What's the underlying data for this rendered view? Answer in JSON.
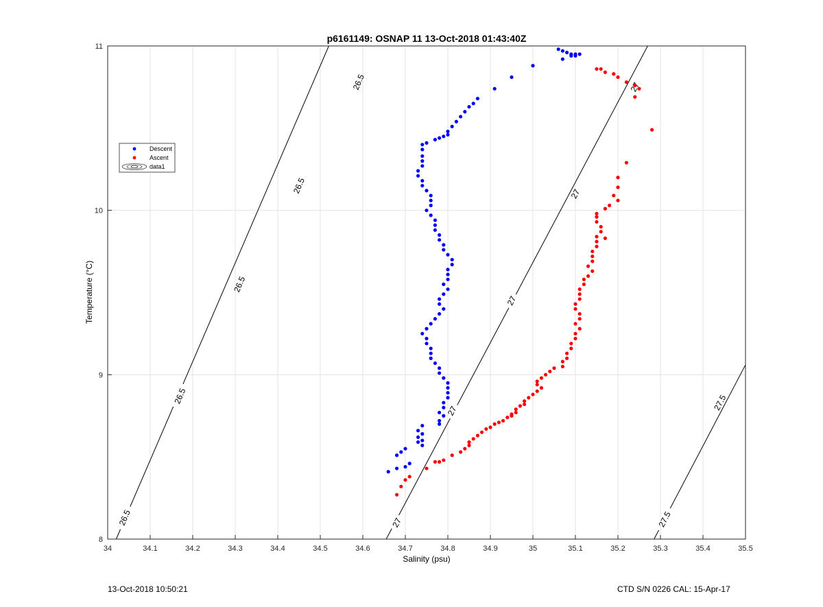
{
  "chart_data": {
    "type": "scatter",
    "title": "p6161149: OSNAP 11 13-Oct-2018 01:43:40Z",
    "xlabel": "Salinity (psu)",
    "ylabel": "Temperature (°C)",
    "xlim": [
      34,
      35.5
    ],
    "ylim": [
      8,
      11
    ],
    "xticks": [
      "34",
      "34.1",
      "34.2",
      "34.3",
      "34.4",
      "34.5",
      "34.6",
      "34.7",
      "34.8",
      "34.9",
      "35",
      "35.1",
      "35.2",
      "35.3",
      "35.4",
      "35.5"
    ],
    "yticks": [
      "8",
      "9",
      "10",
      "11"
    ],
    "grid": true,
    "legend": {
      "position": "upper-left",
      "entries": [
        "Descent",
        "Ascent",
        "data1"
      ]
    },
    "colors": {
      "descent": "#0000ff",
      "ascent": "#ff0000",
      "contour": "#000000"
    },
    "contours": [
      {
        "level": 26.5,
        "label": "26.5",
        "points": [
          [
            34.02,
            8.0
          ],
          [
            34.52,
            11.0
          ]
        ],
        "label_positions": [
          [
            34.04,
            8.13
          ],
          [
            34.17,
            8.87
          ],
          [
            34.31,
            9.55
          ],
          [
            34.45,
            10.15
          ],
          [
            34.59,
            10.78
          ]
        ]
      },
      {
        "level": 27,
        "label": "27",
        "points": [
          [
            34.655,
            8.0
          ],
          [
            35.27,
            11.0
          ]
        ],
        "label_positions": [
          [
            34.68,
            8.1
          ],
          [
            34.81,
            8.78
          ],
          [
            34.95,
            9.45
          ],
          [
            35.1,
            10.1
          ],
          [
            35.24,
            10.75
          ]
        ]
      },
      {
        "level": 27.5,
        "label": "27.5",
        "points": [
          [
            35.285,
            8.0
          ],
          [
            35.5,
            9.06
          ]
        ],
        "label_positions": [
          [
            35.31,
            8.12
          ],
          [
            35.44,
            8.83
          ]
        ]
      }
    ],
    "series": [
      {
        "name": "Descent",
        "points": [
          [
            35.06,
            10.98
          ],
          [
            35.07,
            10.97
          ],
          [
            35.08,
            10.96
          ],
          [
            35.09,
            10.95
          ],
          [
            35.1,
            10.95
          ],
          [
            35.11,
            10.95
          ],
          [
            35.1,
            10.94
          ],
          [
            35.09,
            10.94
          ],
          [
            35.07,
            10.92
          ],
          [
            35.0,
            10.88
          ],
          [
            34.95,
            10.81
          ],
          [
            34.91,
            10.74
          ],
          [
            34.87,
            10.68
          ],
          [
            34.86,
            10.65
          ],
          [
            34.85,
            10.63
          ],
          [
            34.84,
            10.6
          ],
          [
            34.83,
            10.57
          ],
          [
            34.82,
            10.54
          ],
          [
            34.81,
            10.51
          ],
          [
            34.8,
            10.48
          ],
          [
            34.8,
            10.46
          ],
          [
            34.79,
            10.45
          ],
          [
            34.78,
            10.44
          ],
          [
            34.77,
            10.43
          ],
          [
            34.75,
            10.41
          ],
          [
            34.74,
            10.4
          ],
          [
            34.74,
            10.37
          ],
          [
            34.74,
            10.33
          ],
          [
            34.74,
            10.3
          ],
          [
            34.74,
            10.27
          ],
          [
            34.73,
            10.24
          ],
          [
            34.73,
            10.21
          ],
          [
            34.74,
            10.18
          ],
          [
            34.74,
            10.15
          ],
          [
            34.75,
            10.12
          ],
          [
            34.76,
            10.09
          ],
          [
            34.76,
            10.06
          ],
          [
            34.76,
            10.03
          ],
          [
            34.75,
            10.0
          ],
          [
            34.76,
            9.97
          ],
          [
            34.77,
            9.94
          ],
          [
            34.77,
            9.91
          ],
          [
            34.77,
            9.88
          ],
          [
            34.78,
            9.85
          ],
          [
            34.78,
            9.82
          ],
          [
            34.79,
            9.79
          ],
          [
            34.79,
            9.76
          ],
          [
            34.8,
            9.73
          ],
          [
            34.81,
            9.7
          ],
          [
            34.81,
            9.67
          ],
          [
            34.8,
            9.64
          ],
          [
            34.8,
            9.61
          ],
          [
            34.8,
            9.58
          ],
          [
            34.79,
            9.55
          ],
          [
            34.8,
            9.52
          ],
          [
            34.79,
            9.49
          ],
          [
            34.78,
            9.46
          ],
          [
            34.78,
            9.43
          ],
          [
            34.79,
            9.4
          ],
          [
            34.78,
            9.37
          ],
          [
            34.77,
            9.34
          ],
          [
            34.76,
            9.31
          ],
          [
            34.75,
            9.28
          ],
          [
            34.74,
            9.25
          ],
          [
            34.75,
            9.22
          ],
          [
            34.75,
            9.19
          ],
          [
            34.76,
            9.16
          ],
          [
            34.76,
            9.13
          ],
          [
            34.76,
            9.1
          ],
          [
            34.77,
            9.07
          ],
          [
            34.78,
            9.04
          ],
          [
            34.78,
            9.01
          ],
          [
            34.79,
            8.98
          ],
          [
            34.8,
            8.95
          ],
          [
            34.8,
            8.92
          ],
          [
            34.8,
            8.89
          ],
          [
            34.8,
            8.86
          ],
          [
            34.79,
            8.83
          ],
          [
            34.79,
            8.8
          ],
          [
            34.78,
            8.77
          ],
          [
            34.79,
            8.75
          ],
          [
            34.78,
            8.72
          ],
          [
            34.78,
            8.7
          ],
          [
            34.74,
            8.69
          ],
          [
            34.73,
            8.66
          ],
          [
            34.74,
            8.64
          ],
          [
            34.73,
            8.62
          ],
          [
            34.74,
            8.6
          ],
          [
            34.73,
            8.59
          ],
          [
            34.74,
            8.57
          ],
          [
            34.7,
            8.55
          ],
          [
            34.69,
            8.53
          ],
          [
            34.68,
            8.51
          ],
          [
            34.71,
            8.46
          ],
          [
            34.7,
            8.44
          ],
          [
            34.68,
            8.43
          ],
          [
            34.66,
            8.41
          ]
        ]
      },
      {
        "name": "Ascent",
        "points": [
          [
            35.15,
            10.86
          ],
          [
            35.16,
            10.86
          ],
          [
            35.17,
            10.84
          ],
          [
            35.19,
            10.83
          ],
          [
            35.2,
            10.81
          ],
          [
            35.22,
            10.78
          ],
          [
            35.24,
            10.76
          ],
          [
            35.25,
            10.74
          ],
          [
            35.24,
            10.69
          ],
          [
            35.28,
            10.49
          ],
          [
            35.22,
            10.29
          ],
          [
            35.2,
            10.2
          ],
          [
            35.2,
            10.14
          ],
          [
            35.19,
            10.09
          ],
          [
            35.2,
            10.06
          ],
          [
            35.18,
            10.03
          ],
          [
            35.17,
            10.01
          ],
          [
            35.15,
            9.98
          ],
          [
            35.15,
            9.96
          ],
          [
            35.15,
            9.93
          ],
          [
            35.16,
            9.9
          ],
          [
            35.16,
            9.87
          ],
          [
            35.15,
            9.84
          ],
          [
            35.17,
            9.83
          ],
          [
            35.15,
            9.81
          ],
          [
            35.15,
            9.78
          ],
          [
            35.14,
            9.75
          ],
          [
            35.14,
            9.72
          ],
          [
            35.14,
            9.69
          ],
          [
            35.13,
            9.66
          ],
          [
            35.14,
            9.63
          ],
          [
            35.13,
            9.6
          ],
          [
            35.12,
            9.58
          ],
          [
            35.12,
            9.55
          ],
          [
            35.11,
            9.52
          ],
          [
            35.11,
            9.49
          ],
          [
            35.11,
            9.46
          ],
          [
            35.1,
            9.43
          ],
          [
            35.1,
            9.4
          ],
          [
            35.11,
            9.37
          ],
          [
            35.11,
            9.34
          ],
          [
            35.1,
            9.31
          ],
          [
            35.11,
            9.28
          ],
          [
            35.1,
            9.25
          ],
          [
            35.1,
            9.22
          ],
          [
            35.09,
            9.19
          ],
          [
            35.09,
            9.16
          ],
          [
            35.08,
            9.13
          ],
          [
            35.08,
            9.1
          ],
          [
            35.07,
            9.08
          ],
          [
            35.07,
            9.05
          ],
          [
            35.05,
            9.04
          ],
          [
            35.04,
            9.02
          ],
          [
            35.03,
            9.0
          ],
          [
            35.02,
            8.98
          ],
          [
            35.01,
            8.96
          ],
          [
            35.01,
            8.94
          ],
          [
            35.02,
            8.92
          ],
          [
            35.01,
            8.9
          ],
          [
            35.0,
            8.88
          ],
          [
            34.99,
            8.86
          ],
          [
            34.98,
            8.84
          ],
          [
            34.98,
            8.82
          ],
          [
            34.97,
            8.81
          ],
          [
            34.96,
            8.79
          ],
          [
            34.96,
            8.77
          ],
          [
            34.95,
            8.76
          ],
          [
            34.95,
            8.75
          ],
          [
            34.94,
            8.74
          ],
          [
            34.93,
            8.72
          ],
          [
            34.92,
            8.71
          ],
          [
            34.91,
            8.7
          ],
          [
            34.9,
            8.68
          ],
          [
            34.89,
            8.67
          ],
          [
            34.88,
            8.65
          ],
          [
            34.87,
            8.63
          ],
          [
            34.86,
            8.61
          ],
          [
            34.85,
            8.59
          ],
          [
            34.85,
            8.57
          ],
          [
            34.84,
            8.55
          ],
          [
            34.83,
            8.53
          ],
          [
            34.81,
            8.51
          ],
          [
            34.79,
            8.48
          ],
          [
            34.78,
            8.47
          ],
          [
            34.77,
            8.47
          ],
          [
            34.75,
            8.43
          ],
          [
            34.71,
            8.38
          ],
          [
            34.7,
            8.36
          ],
          [
            34.69,
            8.32
          ],
          [
            34.68,
            8.27
          ]
        ]
      }
    ]
  },
  "footer": {
    "left": "13-Oct-2018 10:50:21",
    "right": "CTD S/N 0226  CAL: 15-Apr-17"
  }
}
